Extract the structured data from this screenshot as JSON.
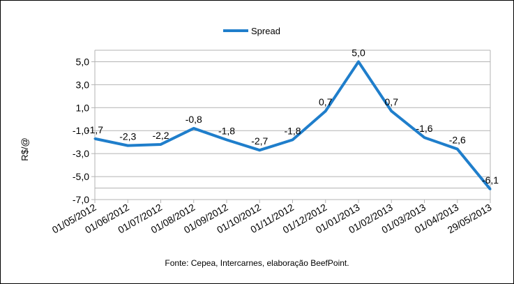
{
  "chart_data": {
    "type": "line",
    "title": "",
    "xlabel": "",
    "ylabel": "R$/@",
    "ylim": [
      -7,
      6
    ],
    "yticks": [
      5,
      3,
      1,
      -1,
      -3,
      -5,
      -7
    ],
    "ytick_labels": [
      "5,0",
      "3,0",
      "1,0",
      "-1,0",
      "-3,0",
      "-5,0",
      "-7,0"
    ],
    "grid": true,
    "legend": {
      "placement": "top-center",
      "entries": [
        "Spread"
      ]
    },
    "categories": [
      "01/05/2012",
      "01/06/2012",
      "01/07/2012",
      "01/08/2012",
      "01/09/2012",
      "01/10/2012",
      "01/11/2012",
      "01/12/2012",
      "01/01/2013",
      "01/02/2013",
      "01/03/2013",
      "01/04/2013",
      "29/05/2013"
    ],
    "series": [
      {
        "name": "Spread",
        "color": "#1f7ecb",
        "values": [
          -1.7,
          -2.3,
          -2.2,
          -0.8,
          -1.8,
          -2.7,
          -1.8,
          0.7,
          5.0,
          0.7,
          -1.6,
          -2.6,
          -6.1
        ],
        "labels": [
          "-1,7",
          "-2,3",
          "-2,2",
          "-0,8",
          "-1,8",
          "-2,7",
          "-1,8",
          "0,7",
          "5,0",
          "0,7",
          "-1,6",
          "-2,6",
          "-6,1"
        ]
      }
    ],
    "source": "Fonte: Cepea, Intercarnes, elaboração BeefPoint."
  }
}
